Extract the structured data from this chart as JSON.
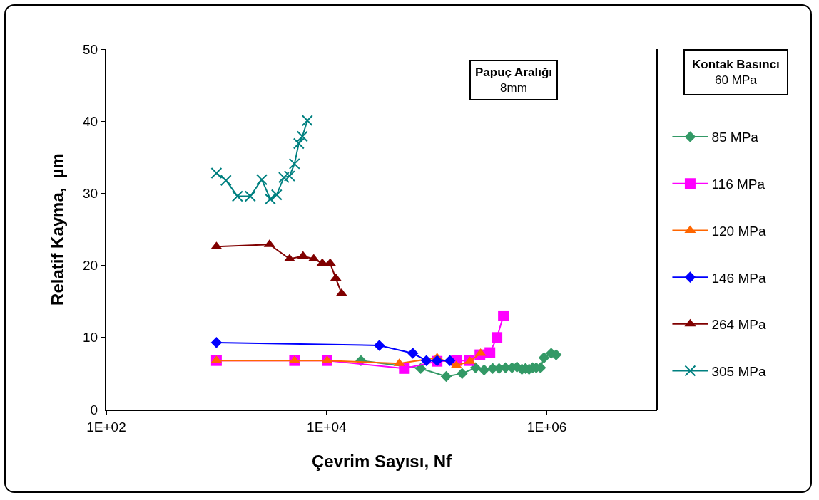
{
  "chart_data": {
    "type": "line",
    "xlabel": "Çevrim Sayısı, Nf",
    "ylabel": "Relatif Kayma,  µm",
    "log": "x",
    "xlim": [
      100,
      10000000
    ],
    "xticks": [
      {
        "value": 100,
        "label": "1E+02"
      },
      {
        "value": 10000,
        "label": "1E+04"
      },
      {
        "value": 1000000,
        "label": "1E+06"
      }
    ],
    "ylim": [
      0,
      50
    ],
    "yticks": [
      0,
      10,
      20,
      30,
      40,
      50
    ],
    "grid": false,
    "legend": "right",
    "annotations": [
      "Papuç Aralığı\n8mm",
      "Kontak Basıncı\n60 MPa"
    ],
    "series": [
      {
        "name": "85 MPa",
        "color": "#339966",
        "marker": "diamond",
        "x": [
          20500,
          71500,
          122000,
          170000,
          225000,
          269000,
          322000,
          368000,
          421000,
          482000,
          535000,
          593000,
          639000,
          689000,
          743000,
          800000,
          875000,
          942000,
          1094000,
          1213000
        ],
        "values": [
          6.8,
          5.7,
          4.6,
          5.0,
          5.8,
          5.5,
          5.7,
          5.7,
          5.8,
          5.8,
          5.9,
          5.6,
          5.7,
          5.6,
          5.8,
          5.8,
          5.8,
          7.2,
          7.8,
          7.6
        ]
      },
      {
        "name": "116 MPa",
        "color": "#ff00ff",
        "marker": "square",
        "x": [
          1000,
          5120,
          10100,
          50800,
          100700,
          150700,
          196600,
          246600,
          303700,
          352000,
          402700
        ],
        "values": [
          6.8,
          6.8,
          6.8,
          5.7,
          6.7,
          6.8,
          6.8,
          7.6,
          7.9,
          10.0,
          13.0
        ]
      },
      {
        "name": "120 MPa",
        "color": "#ff6600",
        "marker": "triangle",
        "x": [
          1000,
          5120,
          10100,
          45700,
          100700,
          150700,
          200000,
          250000
        ],
        "values": [
          6.8,
          6.8,
          6.8,
          6.4,
          7.2,
          6.1,
          6.7,
          7.8
        ]
      },
      {
        "name": "146 MPa",
        "color": "#0000ff",
        "marker": "diamond",
        "x": [
          1000,
          30100,
          60700,
          80500,
          100700,
          131800
        ],
        "values": [
          9.3,
          8.9,
          7.8,
          6.8,
          6.8,
          6.8
        ]
      },
      {
        "name": "264 MPa",
        "color": "#800000",
        "marker": "triangle",
        "x": [
          1000,
          3030,
          4610,
          6110,
          7640,
          9140,
          10770,
          12130,
          13680
        ],
        "values": [
          22.6,
          22.9,
          20.9,
          21.3,
          20.9,
          20.3,
          20.3,
          18.2,
          16.1
        ]
      },
      {
        "name": "305 MPa",
        "color": "#008080",
        "marker": "cross",
        "x": [
          1000,
          1220,
          1550,
          2030,
          2580,
          3080,
          3520,
          4090,
          4610,
          5110,
          5590,
          6030,
          6690
        ],
        "values": [
          32.8,
          31.8,
          29.6,
          29.6,
          31.9,
          29.2,
          29.8,
          32.2,
          32.4,
          34.1,
          36.9,
          37.9,
          40.1
        ]
      }
    ]
  }
}
